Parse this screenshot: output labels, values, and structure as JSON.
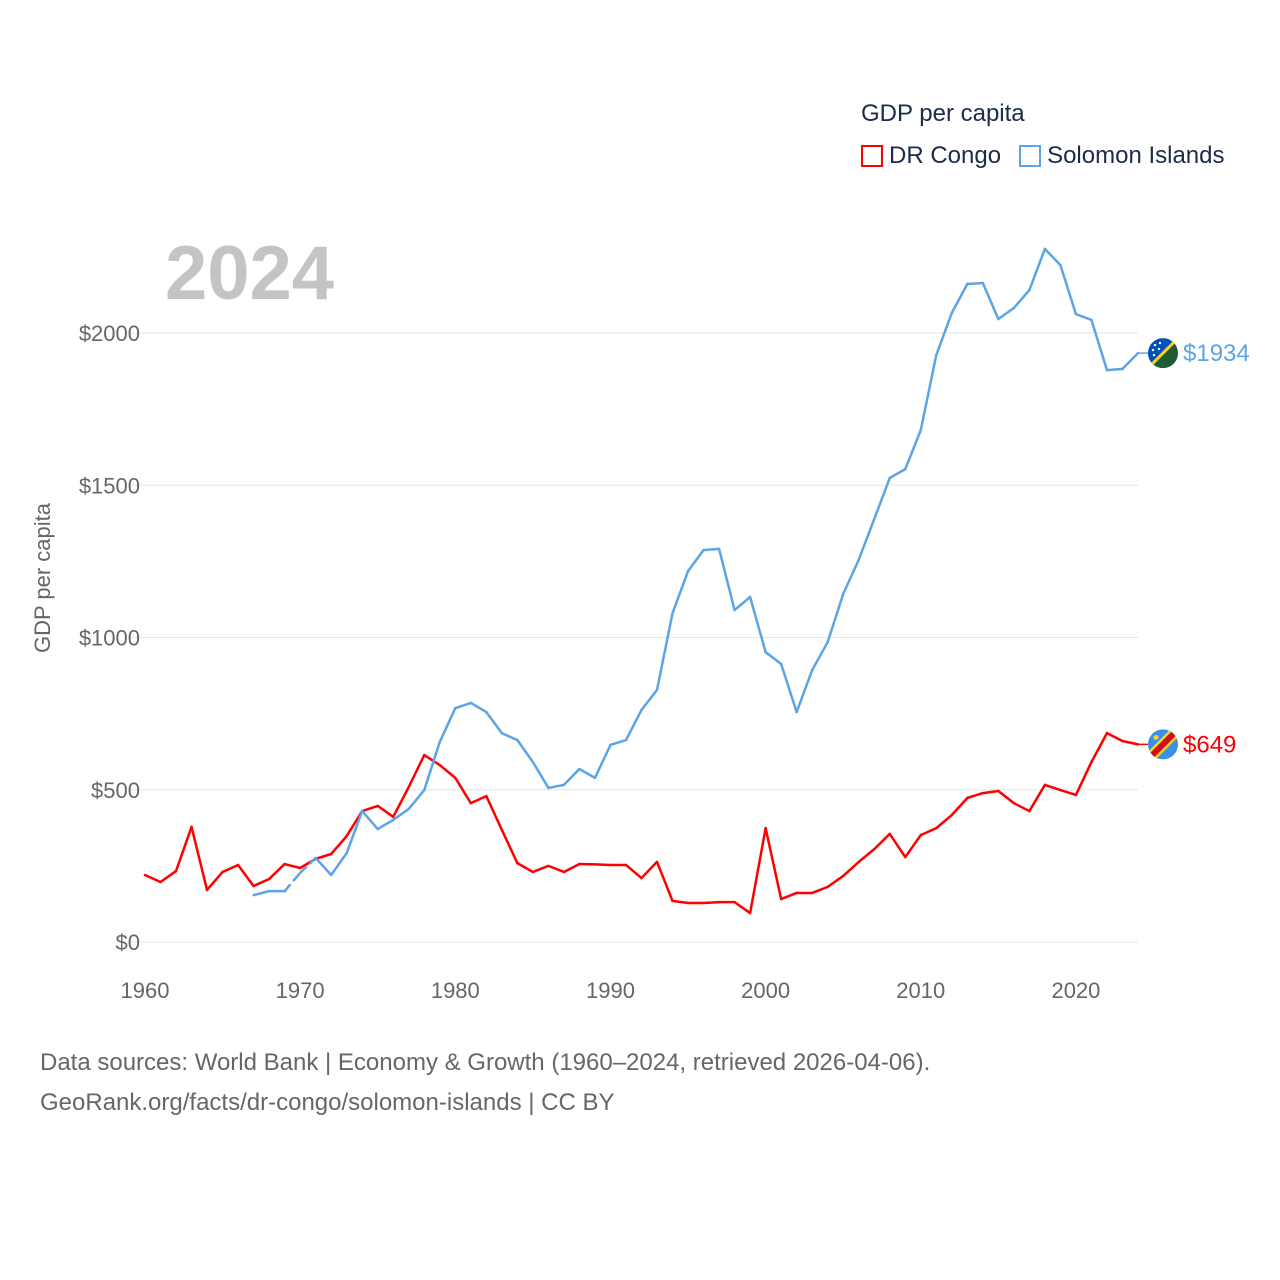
{
  "legend": {
    "title": "GDP per capita",
    "items": [
      "DR Congo",
      "Solomon Islands"
    ]
  },
  "year_label": "2024",
  "footer": {
    "line1": "Data sources: World Bank | Economy & Growth (1960–2024, retrieved 2026-04-06).",
    "line2": "GeoRank.org/facts/dr-congo/solomon-islands | CC BY"
  },
  "chart_data": {
    "type": "line",
    "title": "GDP per capita",
    "xlabel": "",
    "ylabel": "GDP per capita",
    "xlim": [
      1960,
      2024
    ],
    "ylim": [
      0,
      2000
    ],
    "grid": true,
    "legend_position": "top-right",
    "x_ticks": [
      1960,
      1970,
      1980,
      1990,
      2000,
      2010,
      2020
    ],
    "x_tick_labels": [
      "1960",
      "1970",
      "1980",
      "1990",
      "2000",
      "2010",
      "2020"
    ],
    "y_ticks": [
      0,
      500,
      1000,
      1500,
      2000
    ],
    "y_tick_labels": [
      "$0",
      "$500",
      "$1000",
      "$1500",
      "$2000"
    ],
    "series": [
      {
        "name": "DR Congo",
        "color": "#ff0000",
        "start_year": 1960,
        "end_label": "$649",
        "values": [
          220,
          197,
          233,
          378,
          171,
          230,
          253,
          184,
          207,
          256,
          243,
          273,
          289,
          348,
          430,
          447,
          411,
          509,
          614,
          581,
          539,
          456,
          479,
          368,
          259,
          230,
          250,
          230,
          256,
          255,
          253,
          253,
          210,
          263,
          135,
          128,
          128,
          131,
          131,
          95,
          374,
          141,
          161,
          161,
          181,
          217,
          263,
          305,
          355,
          279,
          351,
          374,
          417,
          473,
          489,
          496,
          456,
          430,
          516,
          499,
          483,
          591,
          686,
          660,
          649
        ]
      },
      {
        "name": "Solomon Islands",
        "color": "#5ba4e8",
        "start_year": 1967,
        "interpolated_years": [
          1970
        ],
        "end_label": "$1934",
        "values": [
          154,
          167,
          167,
          227,
          276,
          220,
          292,
          430,
          371,
          401,
          437,
          499,
          657,
          768,
          785,
          755,
          686,
          663,
          591,
          506,
          516,
          568,
          539,
          647,
          663,
          762,
          828,
          1080,
          1218,
          1287,
          1291,
          1090,
          1133,
          952,
          913,
          755,
          893,
          985,
          1143,
          1255,
          1389,
          1524,
          1553,
          1681,
          1928,
          2066,
          2161,
          2164,
          2046,
          2082,
          2141,
          2276,
          2223,
          2062,
          2043,
          1878,
          1882,
          1934
        ]
      }
    ]
  }
}
